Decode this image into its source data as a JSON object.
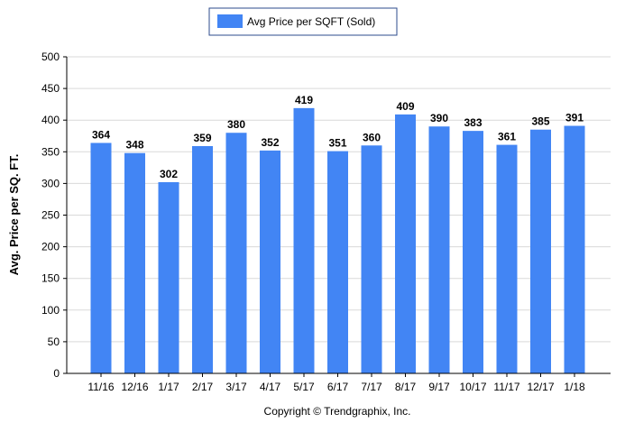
{
  "legend": {
    "label": "Avg Price per SQFT (Sold)"
  },
  "footer": {
    "copyright": "Copyright © Trendgraphix, Inc."
  },
  "colors": {
    "bar": "#4285F4",
    "grid": "#d9d9d9",
    "axis": "#000000",
    "legend_border": "#2e4b8c"
  },
  "chart_data": {
    "type": "bar",
    "categories": [
      "11/16",
      "12/16",
      "1/17",
      "2/17",
      "3/17",
      "4/17",
      "5/17",
      "6/17",
      "7/17",
      "8/17",
      "9/17",
      "10/17",
      "11/17",
      "12/17",
      "1/18"
    ],
    "series": [
      {
        "name": "Avg Price per SQFT (Sold)",
        "values": [
          364,
          348,
          302,
          359,
          380,
          352,
          419,
          351,
          360,
          409,
          390,
          383,
          361,
          385,
          391
        ]
      }
    ],
    "title": "",
    "xlabel": "",
    "ylabel": "Avg. Price per SQ. FT.",
    "ylim": [
      0,
      500
    ],
    "yticks": [
      0,
      50,
      100,
      150,
      200,
      250,
      300,
      350,
      400,
      450,
      500
    ],
    "grid": true,
    "legend_position": "top-center",
    "data_labels": true
  }
}
